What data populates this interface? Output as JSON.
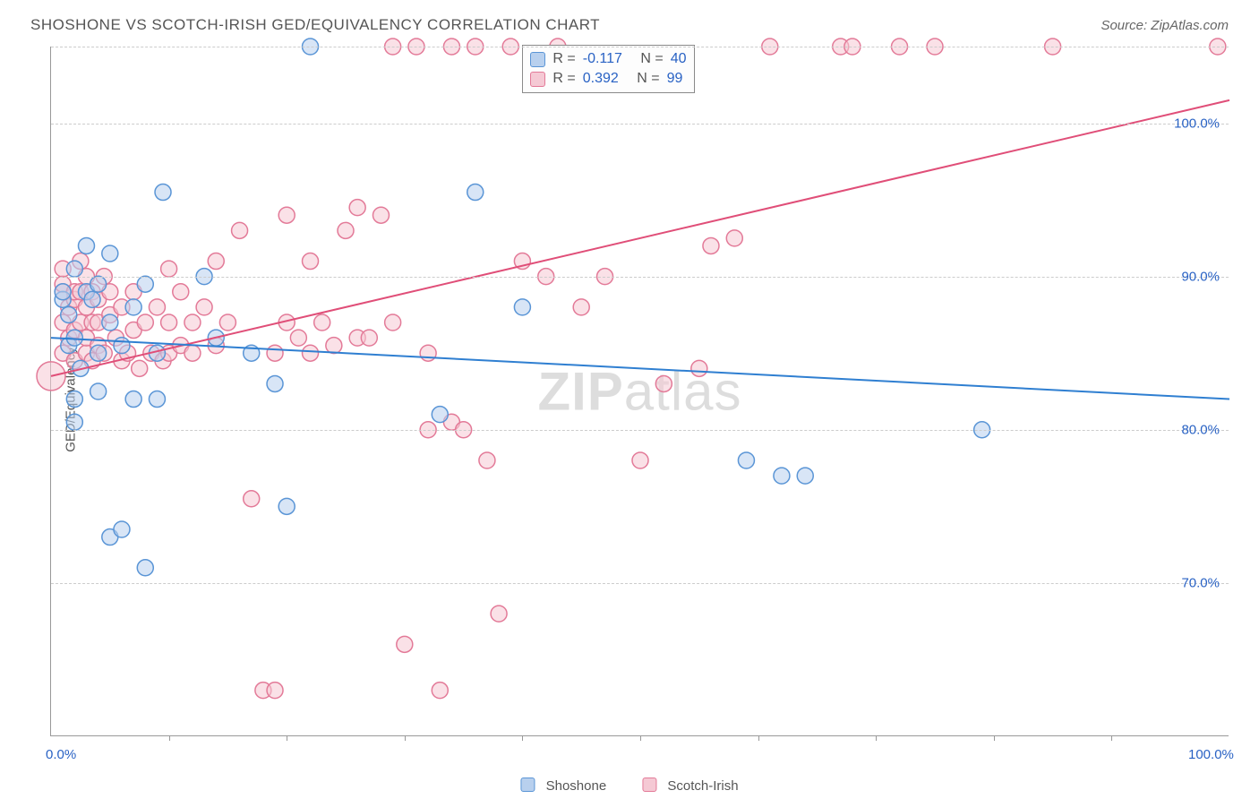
{
  "header": {
    "title": "SHOSHONE VS SCOTCH-IRISH GED/EQUIVALENCY CORRELATION CHART",
    "source": "Source: ZipAtlas.com"
  },
  "watermark": {
    "zip": "ZIP",
    "atlas": "atlas"
  },
  "chart": {
    "type": "scatter",
    "xlim": [
      0,
      100
    ],
    "ylim": [
      60,
      105
    ],
    "xaxis_min_label": "0.0%",
    "xaxis_max_label": "100.0%",
    "yaxis_title": "GED/Equivalency",
    "yticks": [
      {
        "v": 70,
        "label": "70.0%"
      },
      {
        "v": 80,
        "label": "80.0%"
      },
      {
        "v": 90,
        "label": "90.0%"
      },
      {
        "v": 100,
        "label": "100.0%"
      }
    ],
    "top_gridline": 105,
    "xticks_at": [
      10,
      20,
      30,
      40,
      50,
      60,
      70,
      80,
      90
    ],
    "background_color": "#ffffff",
    "grid_color": "#cccccc",
    "axis_color": "#999999",
    "label_color": "#2962c4",
    "title_color": "#555555",
    "title_fontsize": 17,
    "label_fontsize": 15,
    "marker_radius": 9,
    "marker_stroke_width": 1.5,
    "regression_line_width": 2
  },
  "series": {
    "shoshone": {
      "label": "Shoshone",
      "fill": "#b8d0ee",
      "stroke": "#5a95d6",
      "fill_opacity": 0.55,
      "line_color": "#2f7fd1",
      "R": "-0.117",
      "N": "40",
      "regression": {
        "x1": 0,
        "y1": 86.0,
        "x2": 100,
        "y2": 82.0
      },
      "points": [
        {
          "x": 1,
          "y": 88.5
        },
        {
          "x": 1,
          "y": 89
        },
        {
          "x": 1.5,
          "y": 85.5
        },
        {
          "x": 1.5,
          "y": 87.5
        },
        {
          "x": 2,
          "y": 80.5
        },
        {
          "x": 2,
          "y": 82
        },
        {
          "x": 2,
          "y": 86
        },
        {
          "x": 2,
          "y": 90.5
        },
        {
          "x": 2.5,
          "y": 84
        },
        {
          "x": 3,
          "y": 89
        },
        {
          "x": 3,
          "y": 92
        },
        {
          "x": 3.5,
          "y": 88.5
        },
        {
          "x": 4,
          "y": 85
        },
        {
          "x": 4,
          "y": 89.5
        },
        {
          "x": 4,
          "y": 82.5
        },
        {
          "x": 5,
          "y": 73
        },
        {
          "x": 5,
          "y": 87
        },
        {
          "x": 5,
          "y": 91.5
        },
        {
          "x": 6,
          "y": 85.5
        },
        {
          "x": 6,
          "y": 73.5
        },
        {
          "x": 7,
          "y": 82
        },
        {
          "x": 7,
          "y": 88
        },
        {
          "x": 8,
          "y": 89.5
        },
        {
          "x": 8,
          "y": 71
        },
        {
          "x": 9,
          "y": 82
        },
        {
          "x": 9,
          "y": 85
        },
        {
          "x": 9.5,
          "y": 95.5
        },
        {
          "x": 13,
          "y": 90
        },
        {
          "x": 14,
          "y": 86
        },
        {
          "x": 17,
          "y": 85
        },
        {
          "x": 19,
          "y": 83
        },
        {
          "x": 20,
          "y": 75
        },
        {
          "x": 22,
          "y": 105
        },
        {
          "x": 33,
          "y": 81
        },
        {
          "x": 36,
          "y": 95.5
        },
        {
          "x": 40,
          "y": 88
        },
        {
          "x": 59,
          "y": 78
        },
        {
          "x": 62,
          "y": 77
        },
        {
          "x": 64,
          "y": 77
        },
        {
          "x": 79,
          "y": 80
        }
      ]
    },
    "scotch_irish": {
      "label": "Scotch-Irish",
      "fill": "#f5c9d4",
      "stroke": "#e37a98",
      "fill_opacity": 0.55,
      "line_color": "#e04e78",
      "R": "0.392",
      "N": "99",
      "regression": {
        "x1": 0,
        "y1": 83.5,
        "x2": 100,
        "y2": 101.5
      },
      "points": [
        {
          "x": 0,
          "y": 83.5,
          "r": 16
        },
        {
          "x": 1,
          "y": 85
        },
        {
          "x": 1,
          "y": 87
        },
        {
          "x": 1,
          "y": 89
        },
        {
          "x": 1,
          "y": 89.5
        },
        {
          "x": 1,
          "y": 90.5
        },
        {
          "x": 1.5,
          "y": 86
        },
        {
          "x": 1.5,
          "y": 88
        },
        {
          "x": 2,
          "y": 84.5
        },
        {
          "x": 2,
          "y": 86.5
        },
        {
          "x": 2,
          "y": 88.5
        },
        {
          "x": 2,
          "y": 89
        },
        {
          "x": 2.5,
          "y": 87
        },
        {
          "x": 2.5,
          "y": 89
        },
        {
          "x": 2.5,
          "y": 91
        },
        {
          "x": 3,
          "y": 85
        },
        {
          "x": 3,
          "y": 86
        },
        {
          "x": 3,
          "y": 88
        },
        {
          "x": 3,
          "y": 90
        },
        {
          "x": 3.5,
          "y": 84.5
        },
        {
          "x": 3.5,
          "y": 87
        },
        {
          "x": 3.5,
          "y": 89
        },
        {
          "x": 4,
          "y": 85.5
        },
        {
          "x": 4,
          "y": 87
        },
        {
          "x": 4,
          "y": 88.5
        },
        {
          "x": 4.5,
          "y": 85
        },
        {
          "x": 4.5,
          "y": 90
        },
        {
          "x": 5,
          "y": 87.5
        },
        {
          "x": 5,
          "y": 89
        },
        {
          "x": 5.5,
          "y": 86
        },
        {
          "x": 6,
          "y": 84.5
        },
        {
          "x": 6,
          "y": 88
        },
        {
          "x": 6.5,
          "y": 85
        },
        {
          "x": 7,
          "y": 86.5
        },
        {
          "x": 7,
          "y": 89
        },
        {
          "x": 7.5,
          "y": 84
        },
        {
          "x": 8,
          "y": 87
        },
        {
          "x": 8.5,
          "y": 85
        },
        {
          "x": 9,
          "y": 88
        },
        {
          "x": 9.5,
          "y": 84.5
        },
        {
          "x": 10,
          "y": 85
        },
        {
          "x": 10,
          "y": 87
        },
        {
          "x": 10,
          "y": 90.5
        },
        {
          "x": 11,
          "y": 85.5
        },
        {
          "x": 11,
          "y": 89
        },
        {
          "x": 12,
          "y": 85
        },
        {
          "x": 12,
          "y": 87
        },
        {
          "x": 13,
          "y": 88
        },
        {
          "x": 14,
          "y": 85.5
        },
        {
          "x": 14,
          "y": 91
        },
        {
          "x": 15,
          "y": 87
        },
        {
          "x": 16,
          "y": 93
        },
        {
          "x": 17,
          "y": 75.5
        },
        {
          "x": 18,
          "y": 63
        },
        {
          "x": 19,
          "y": 63
        },
        {
          "x": 19,
          "y": 85
        },
        {
          "x": 20,
          "y": 87
        },
        {
          "x": 20,
          "y": 94
        },
        {
          "x": 21,
          "y": 86
        },
        {
          "x": 22,
          "y": 85
        },
        {
          "x": 22,
          "y": 91
        },
        {
          "x": 23,
          "y": 87
        },
        {
          "x": 24,
          "y": 85.5
        },
        {
          "x": 25,
          "y": 93
        },
        {
          "x": 26,
          "y": 86
        },
        {
          "x": 26,
          "y": 94.5
        },
        {
          "x": 27,
          "y": 86
        },
        {
          "x": 28,
          "y": 94
        },
        {
          "x": 29,
          "y": 87
        },
        {
          "x": 29,
          "y": 105
        },
        {
          "x": 30,
          "y": 66
        },
        {
          "x": 31,
          "y": 105
        },
        {
          "x": 32,
          "y": 85
        },
        {
          "x": 32,
          "y": 80
        },
        {
          "x": 33,
          "y": 63
        },
        {
          "x": 34,
          "y": 80.5
        },
        {
          "x": 34,
          "y": 105
        },
        {
          "x": 35,
          "y": 80
        },
        {
          "x": 36,
          "y": 105
        },
        {
          "x": 37,
          "y": 78
        },
        {
          "x": 38,
          "y": 68
        },
        {
          "x": 39,
          "y": 105
        },
        {
          "x": 40,
          "y": 91
        },
        {
          "x": 42,
          "y": 90
        },
        {
          "x": 43,
          "y": 105
        },
        {
          "x": 45,
          "y": 88
        },
        {
          "x": 47,
          "y": 90
        },
        {
          "x": 50,
          "y": 78
        },
        {
          "x": 52,
          "y": 83
        },
        {
          "x": 55,
          "y": 84
        },
        {
          "x": 56,
          "y": 92
        },
        {
          "x": 58,
          "y": 92.5
        },
        {
          "x": 61,
          "y": 105
        },
        {
          "x": 67,
          "y": 105
        },
        {
          "x": 68,
          "y": 105
        },
        {
          "x": 72,
          "y": 105
        },
        {
          "x": 75,
          "y": 105
        },
        {
          "x": 85,
          "y": 105
        },
        {
          "x": 99,
          "y": 105
        }
      ]
    }
  },
  "stats_box": {
    "r_label": "R =",
    "n_label": "N ="
  }
}
